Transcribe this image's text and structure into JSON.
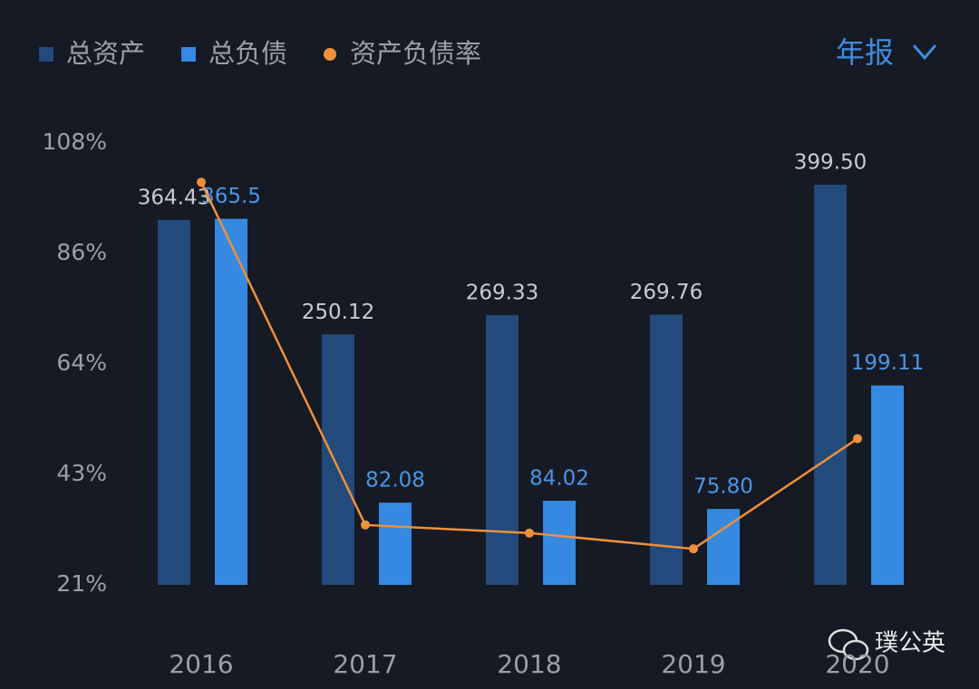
{
  "chart_data": {
    "type": "bar-line",
    "categories": [
      "2016",
      "2017",
      "2018",
      "2019",
      "2020"
    ],
    "series": [
      {
        "name": "总资产",
        "type": "bar",
        "color": "#224a7a",
        "values": [
          364.43,
          250.12,
          269.33,
          269.76,
          399.5
        ],
        "value_labels": [
          "364.43",
          "250.12",
          "269.33",
          "269.76",
          "399.50"
        ]
      },
      {
        "name": "总负债",
        "type": "bar",
        "color": "#3589e0",
        "values": [
          365.5,
          82.08,
          84.02,
          75.8,
          199.11
        ],
        "value_labels": [
          "365.5",
          "82.08",
          "84.02",
          "75.80",
          "199.11"
        ]
      },
      {
        "name": "资产负债率",
        "type": "line",
        "color": "#f0903a",
        "values": [
          100.3,
          32.8,
          31.2,
          28.1,
          49.8
        ]
      }
    ],
    "ylim": [
      21,
      108
    ],
    "yticks": [
      {
        "value": 21,
        "label": "21%"
      },
      {
        "value": 42.75,
        "label": "43%"
      },
      {
        "value": 64.5,
        "label": "64%"
      },
      {
        "value": 86.25,
        "label": "86%"
      },
      {
        "value": 108,
        "label": "108%"
      }
    ]
  },
  "ui": {
    "period_selector": "年报",
    "watermark": "璞公英"
  }
}
